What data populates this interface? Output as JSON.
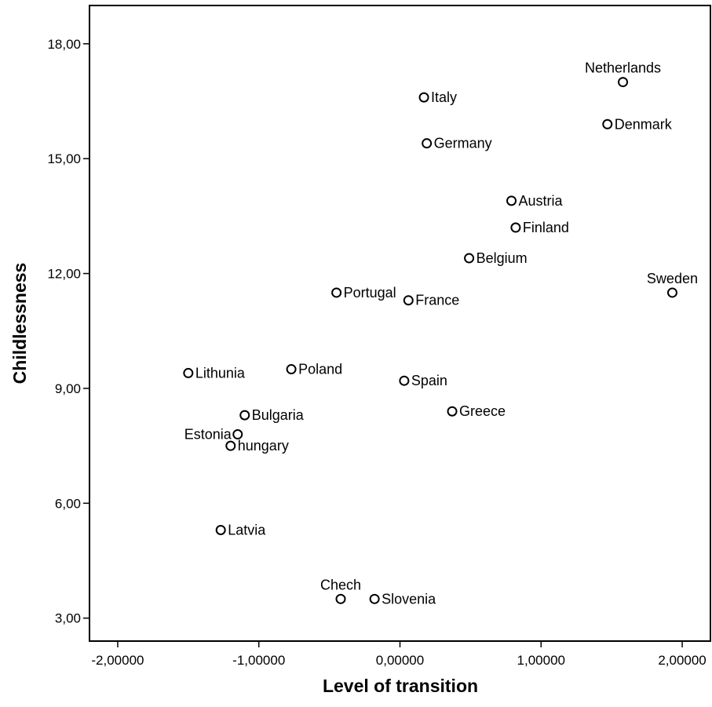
{
  "chart_data": {
    "type": "scatter",
    "title": "",
    "xlabel": "Level of transition",
    "ylabel": "Childlessness",
    "xlim": [
      -2.2,
      2.2
    ],
    "ylim": [
      2.4,
      19.0
    ],
    "grid": false,
    "x_ticks": [
      -2,
      -1,
      0,
      1,
      2
    ],
    "x_tick_labels": [
      "-2,00000",
      "-1,00000",
      "0,00000",
      "1,00000",
      "2,00000"
    ],
    "y_ticks": [
      3,
      6,
      9,
      12,
      15,
      18
    ],
    "y_tick_labels": [
      "3,00",
      "6,00",
      "9,00",
      "12,00",
      "15,00",
      "18,00"
    ],
    "points": [
      {
        "label": "Netherlands",
        "x": 1.58,
        "y": 17.0,
        "label_pos": "above"
      },
      {
        "label": "Italy",
        "x": 0.17,
        "y": 16.6,
        "label_pos": "right"
      },
      {
        "label": "Denmark",
        "x": 1.47,
        "y": 15.9,
        "label_pos": "right"
      },
      {
        "label": "Germany",
        "x": 0.19,
        "y": 15.4,
        "label_pos": "right"
      },
      {
        "label": "Austria",
        "x": 0.79,
        "y": 13.9,
        "label_pos": "right"
      },
      {
        "label": "Finland",
        "x": 0.82,
        "y": 13.2,
        "label_pos": "right"
      },
      {
        "label": "Belgium",
        "x": 0.49,
        "y": 12.4,
        "label_pos": "right"
      },
      {
        "label": "Sweden",
        "x": 1.93,
        "y": 11.5,
        "label_pos": "above"
      },
      {
        "label": "Portugal",
        "x": -0.45,
        "y": 11.5,
        "label_pos": "right"
      },
      {
        "label": "France",
        "x": 0.06,
        "y": 11.3,
        "label_pos": "right"
      },
      {
        "label": "Lithunia",
        "x": -1.5,
        "y": 9.4,
        "label_pos": "right"
      },
      {
        "label": "Poland",
        "x": -0.77,
        "y": 9.5,
        "label_pos": "right"
      },
      {
        "label": "Spain",
        "x": 0.03,
        "y": 9.2,
        "label_pos": "right"
      },
      {
        "label": "Bulgaria",
        "x": -1.1,
        "y": 8.3,
        "label_pos": "right"
      },
      {
        "label": "Greece",
        "x": 0.37,
        "y": 8.4,
        "label_pos": "right"
      },
      {
        "label": "Estonia",
        "x": -1.15,
        "y": 7.8,
        "label_pos": "left"
      },
      {
        "label": "hungary",
        "x": -1.2,
        "y": 7.5,
        "label_pos": "right"
      },
      {
        "label": "Latvia",
        "x": -1.27,
        "y": 5.3,
        "label_pos": "right"
      },
      {
        "label": "Chech",
        "x": -0.42,
        "y": 3.5,
        "label_pos": "above"
      },
      {
        "label": "Slovenia",
        "x": -0.18,
        "y": 3.5,
        "label_pos": "right"
      }
    ]
  }
}
